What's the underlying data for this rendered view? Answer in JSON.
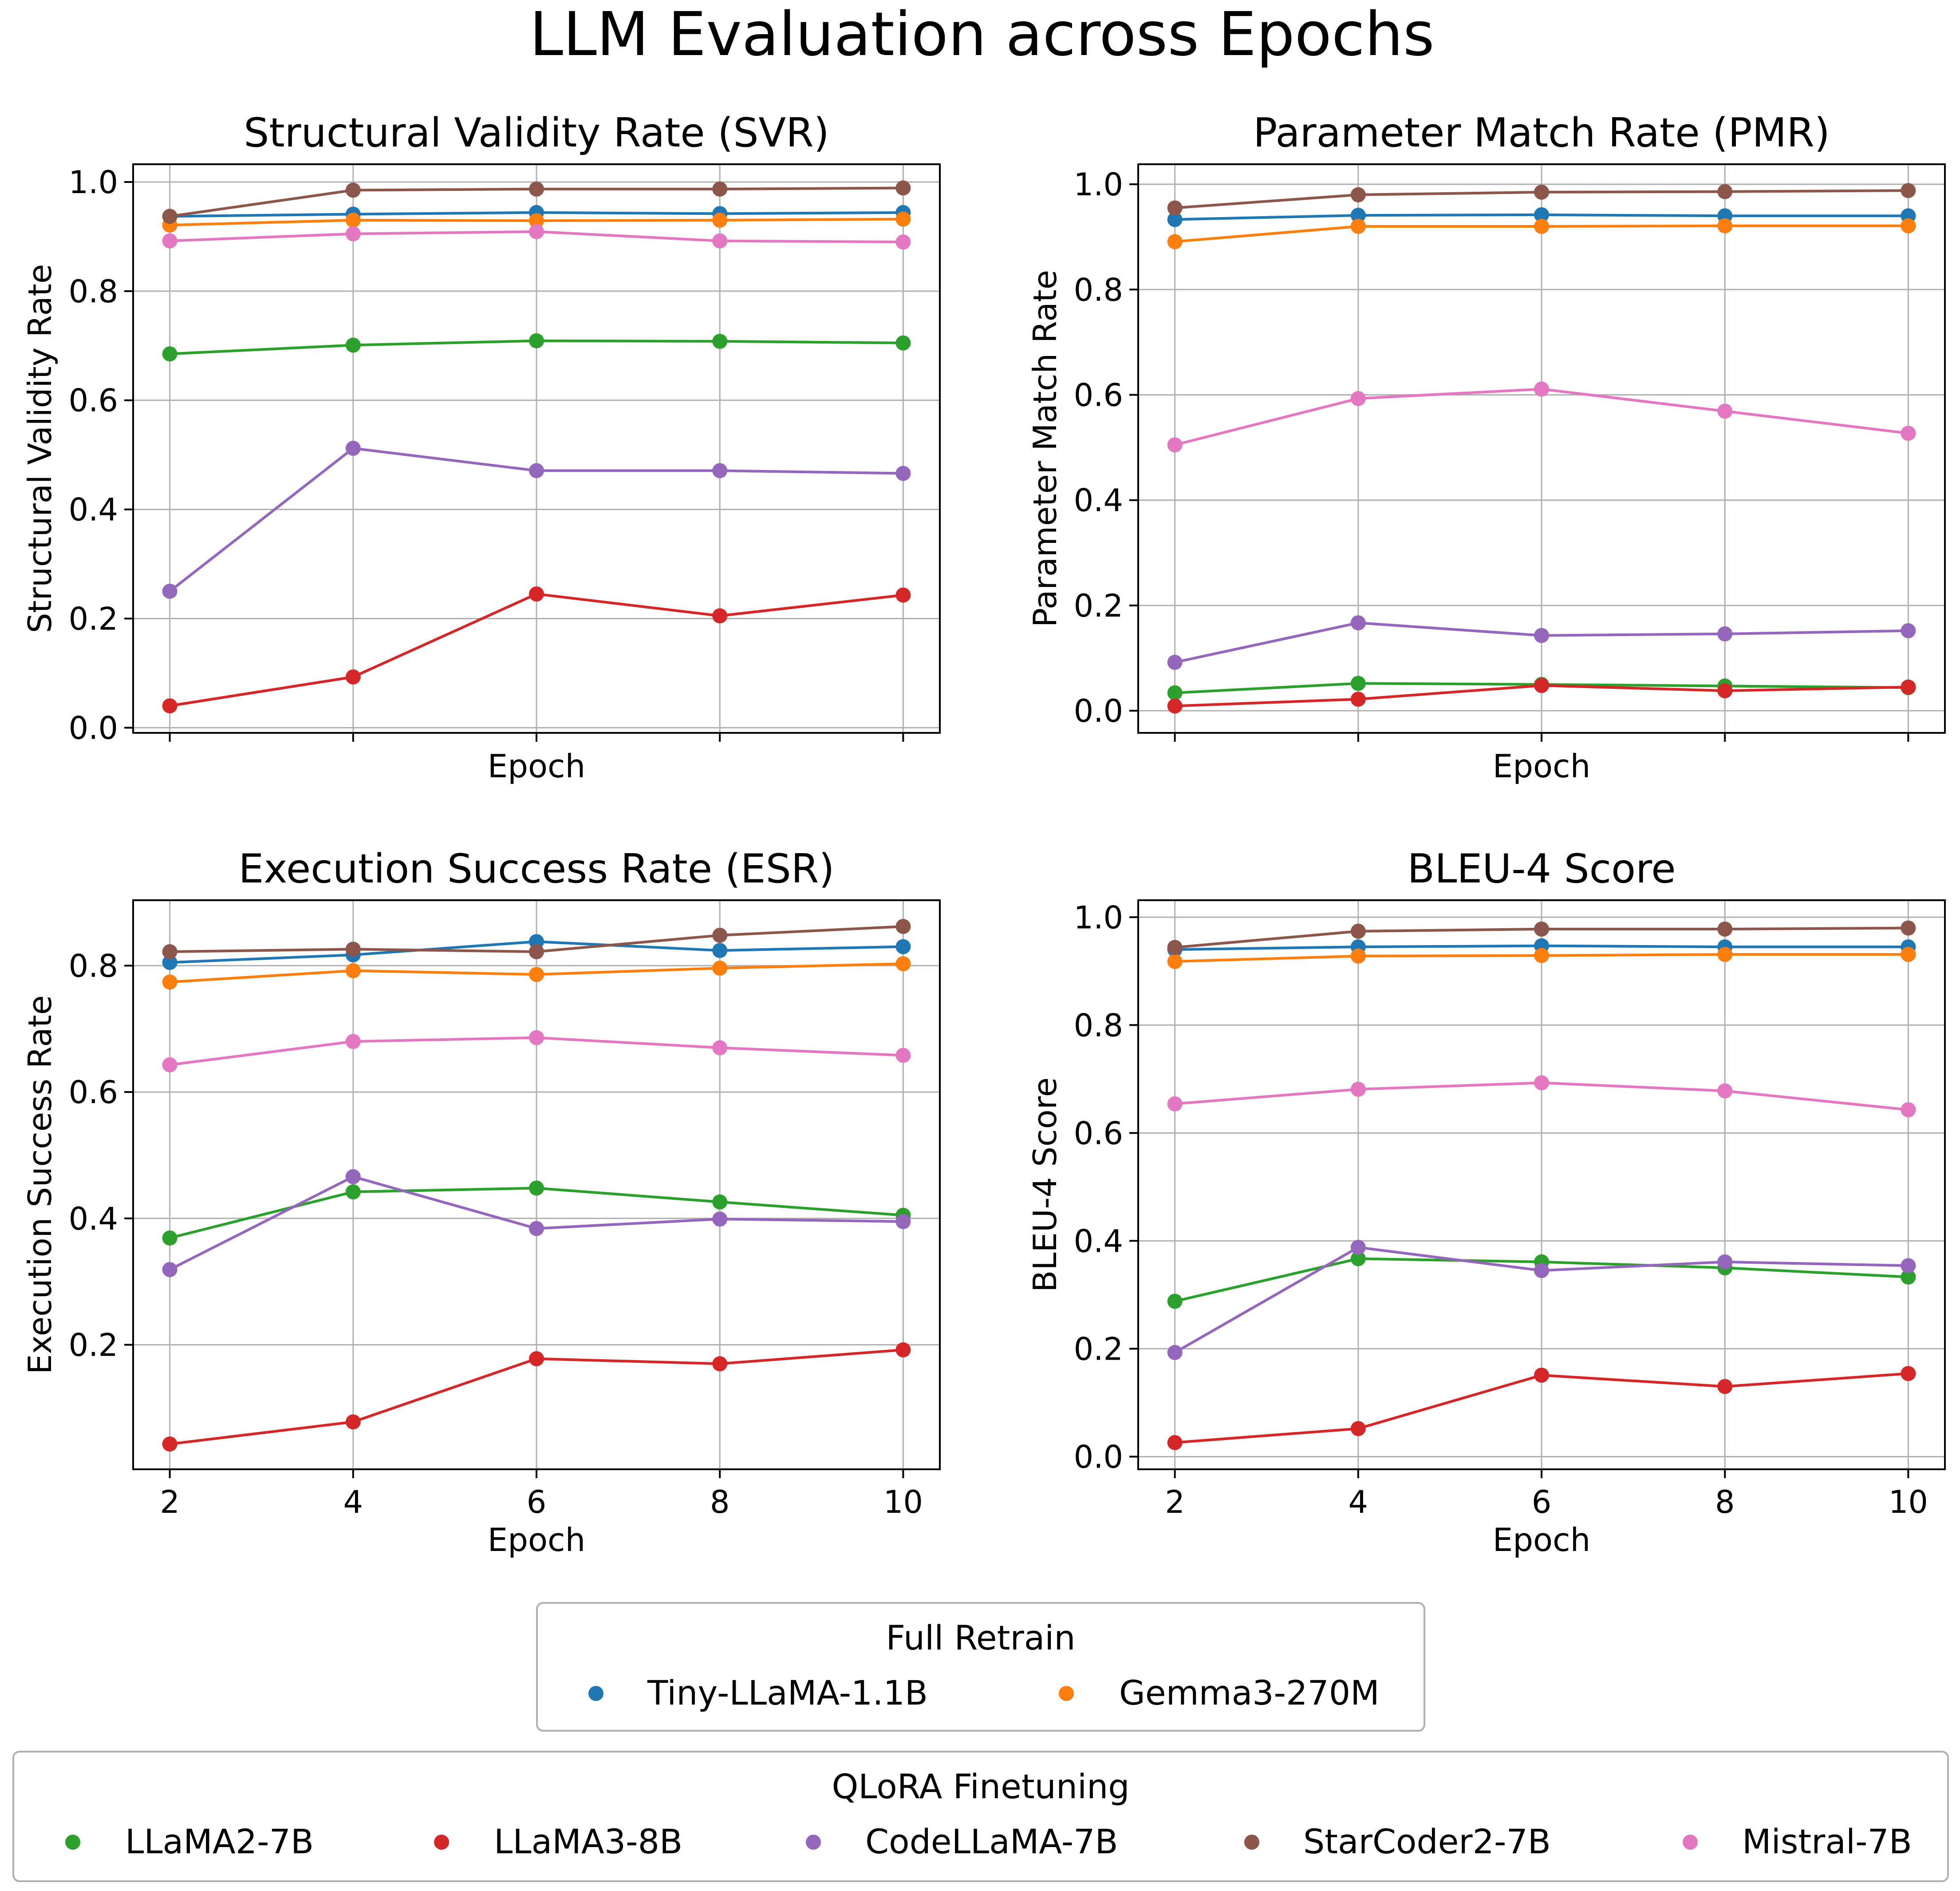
{
  "figure": {
    "title": "LLM Evaluation across Epochs"
  },
  "colors": {
    "Tiny-LLaMA-1.1B": "#1f77b4",
    "Gemma3-270M": "#ff7f0e",
    "LLaMA2-7B": "#2ca02c",
    "LLaMA3-8B": "#d62728",
    "CodeLLaMA-7B": "#9467bd",
    "StarCoder2-7B": "#8c564b",
    "Mistral-7B": "#e377c2"
  },
  "legends": [
    {
      "title": "Full Retrain",
      "entries": [
        "Tiny-LLaMA-1.1B",
        "Gemma3-270M"
      ]
    },
    {
      "title": "QLoRA Finetuning",
      "entries": [
        "LLaMA2-7B",
        "LLaMA3-8B",
        "CodeLLaMA-7B",
        "StarCoder2-7B",
        "Mistral-7B"
      ]
    }
  ],
  "chart_data": [
    {
      "type": "line",
      "title": "Structural Validity Rate (SVR)",
      "xlabel": "Epoch",
      "ylabel": "Structural Validity Rate",
      "x": [
        2,
        4,
        6,
        8,
        10
      ],
      "xticks": [
        2,
        4,
        6,
        8,
        10
      ],
      "show_xtick_labels": false,
      "yticks": [
        0.0,
        0.2,
        0.4,
        0.6,
        0.8,
        1.0
      ],
      "ytick_labels": [
        "0.0",
        "0.2",
        "0.4",
        "0.6",
        "0.8",
        "1.0"
      ],
      "xlim": [
        1.6,
        10.4
      ],
      "ylim": [
        -0.0095,
        1.0325
      ],
      "grid": true,
      "series": [
        {
          "name": "Tiny-LLaMA-1.1B",
          "values": [
            0.937,
            0.941,
            0.944,
            0.942,
            0.944
          ]
        },
        {
          "name": "Gemma3-270M",
          "values": [
            0.921,
            0.93,
            0.929,
            0.93,
            0.932
          ]
        },
        {
          "name": "LLaMA2-7B",
          "values": [
            0.685,
            0.701,
            0.709,
            0.708,
            0.705
          ]
        },
        {
          "name": "LLaMA3-8B",
          "values": [
            0.04,
            0.093,
            0.245,
            0.205,
            0.243
          ]
        },
        {
          "name": "CodeLLaMA-7B",
          "values": [
            0.25,
            0.512,
            0.471,
            0.471,
            0.466
          ]
        },
        {
          "name": "StarCoder2-7B",
          "values": [
            0.937,
            0.985,
            0.987,
            0.987,
            0.989
          ]
        },
        {
          "name": "Mistral-7B",
          "values": [
            0.892,
            0.905,
            0.909,
            0.892,
            0.89
          ]
        }
      ]
    },
    {
      "type": "line",
      "title": "Parameter Match Rate (PMR)",
      "xlabel": "Epoch",
      "ylabel": "Parameter Match Rate",
      "x": [
        2,
        4,
        6,
        8,
        10
      ],
      "xticks": [
        2,
        4,
        6,
        8,
        10
      ],
      "show_xtick_labels": false,
      "yticks": [
        0.0,
        0.2,
        0.4,
        0.6,
        0.8,
        1.0
      ],
      "ytick_labels": [
        "0.0",
        "0.2",
        "0.4",
        "0.6",
        "0.8",
        "1.0"
      ],
      "xlim": [
        1.6,
        10.4
      ],
      "ylim": [
        -0.042,
        1.038
      ],
      "grid": true,
      "series": [
        {
          "name": "Tiny-LLaMA-1.1B",
          "values": [
            0.933,
            0.941,
            0.942,
            0.94,
            0.94
          ]
        },
        {
          "name": "Gemma3-270M",
          "values": [
            0.891,
            0.92,
            0.92,
            0.921,
            0.921
          ]
        },
        {
          "name": "LLaMA2-7B",
          "values": [
            0.034,
            0.052,
            0.05,
            0.047,
            0.044
          ]
        },
        {
          "name": "LLaMA3-8B",
          "values": [
            0.009,
            0.022,
            0.048,
            0.038,
            0.045
          ]
        },
        {
          "name": "CodeLLaMA-7B",
          "values": [
            0.092,
            0.167,
            0.143,
            0.146,
            0.152
          ]
        },
        {
          "name": "StarCoder2-7B",
          "values": [
            0.955,
            0.98,
            0.985,
            0.986,
            0.988
          ]
        },
        {
          "name": "Mistral-7B",
          "values": [
            0.505,
            0.593,
            0.611,
            0.569,
            0.527
          ]
        }
      ]
    },
    {
      "type": "line",
      "title": "Execution Success Rate (ESR)",
      "xlabel": "Epoch",
      "ylabel": "Execution Success Rate",
      "x": [
        2,
        4,
        6,
        8,
        10
      ],
      "xticks": [
        2,
        4,
        6,
        8,
        10
      ],
      "show_xtick_labels": true,
      "yticks": [
        0.2,
        0.4,
        0.6,
        0.8
      ],
      "ytick_labels": [
        "0.2",
        "0.4",
        "0.6",
        "0.8"
      ],
      "xlim": [
        1.6,
        10.4
      ],
      "ylim": [
        0.003,
        0.9035
      ],
      "grid": true,
      "series": [
        {
          "name": "Tiny-LLaMA-1.1B",
          "values": [
            0.805,
            0.817,
            0.838,
            0.824,
            0.83
          ]
        },
        {
          "name": "Gemma3-270M",
          "values": [
            0.774,
            0.792,
            0.786,
            0.796,
            0.803
          ]
        },
        {
          "name": "LLaMA2-7B",
          "values": [
            0.369,
            0.442,
            0.448,
            0.426,
            0.405
          ]
        },
        {
          "name": "LLaMA3-8B",
          "values": [
            0.043,
            0.078,
            0.178,
            0.17,
            0.192
          ]
        },
        {
          "name": "CodeLLaMA-7B",
          "values": [
            0.319,
            0.466,
            0.384,
            0.399,
            0.395
          ]
        },
        {
          "name": "StarCoder2-7B",
          "values": [
            0.822,
            0.826,
            0.822,
            0.848,
            0.862
          ]
        },
        {
          "name": "Mistral-7B",
          "values": [
            0.643,
            0.68,
            0.686,
            0.67,
            0.658
          ]
        }
      ]
    },
    {
      "type": "line",
      "title": "BLEU-4 Score",
      "xlabel": "Epoch",
      "ylabel": "BLEU-4 Score",
      "x": [
        2,
        4,
        6,
        8,
        10
      ],
      "xticks": [
        2,
        4,
        6,
        8,
        10
      ],
      "show_xtick_labels": true,
      "yticks": [
        0.0,
        0.2,
        0.4,
        0.6,
        0.8,
        1.0
      ],
      "ytick_labels": [
        "0.0",
        "0.2",
        "0.4",
        "0.6",
        "0.8",
        "1.0"
      ],
      "xlim": [
        1.6,
        10.4
      ],
      "ylim": [
        -0.0235,
        1.0315
      ],
      "grid": true,
      "series": [
        {
          "name": "Tiny-LLaMA-1.1B",
          "values": [
            0.94,
            0.945,
            0.947,
            0.945,
            0.945
          ]
        },
        {
          "name": "Gemma3-270M",
          "values": [
            0.918,
            0.928,
            0.929,
            0.931,
            0.931
          ]
        },
        {
          "name": "LLaMA2-7B",
          "values": [
            0.288,
            0.367,
            0.361,
            0.35,
            0.333
          ]
        },
        {
          "name": "LLaMA3-8B",
          "values": [
            0.026,
            0.052,
            0.151,
            0.13,
            0.154
          ]
        },
        {
          "name": "CodeLLaMA-7B",
          "values": [
            0.193,
            0.388,
            0.345,
            0.361,
            0.354
          ]
        },
        {
          "name": "StarCoder2-7B",
          "values": [
            0.944,
            0.974,
            0.978,
            0.978,
            0.98
          ]
        },
        {
          "name": "Mistral-7B",
          "values": [
            0.654,
            0.681,
            0.693,
            0.678,
            0.643
          ]
        }
      ]
    }
  ]
}
